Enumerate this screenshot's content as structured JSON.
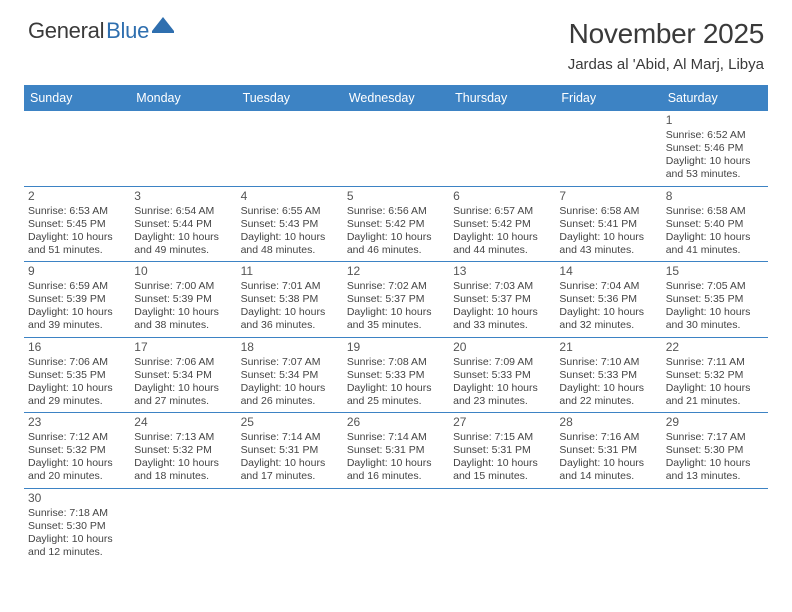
{
  "brand": {
    "text1": "General",
    "text2": "Blue",
    "logo_fill": "#2F6FAF"
  },
  "header": {
    "month_title": "November 2025",
    "location": "Jardas al 'Abid, Al Marj, Libya"
  },
  "styling": {
    "header_bg": "#3D83C4",
    "header_text": "#ffffff",
    "body_text": "#444444",
    "page_bg": "#ffffff",
    "grid_line": "#b8b8b8",
    "row_sep": "#3D83C4",
    "font_family": "Arial",
    "th_fontsize": 12.5,
    "td_fontsize": 10.5,
    "title_fontsize": 28,
    "location_fontsize": 15
  },
  "columns": [
    "Sunday",
    "Monday",
    "Tuesday",
    "Wednesday",
    "Thursday",
    "Friday",
    "Saturday"
  ],
  "weeks": [
    [
      null,
      null,
      null,
      null,
      null,
      null,
      {
        "d": "1",
        "sr": "6:52 AM",
        "ss": "5:46 PM",
        "dl1": "10 hours",
        "dl2": "and 53 minutes."
      }
    ],
    [
      {
        "d": "2",
        "sr": "6:53 AM",
        "ss": "5:45 PM",
        "dl1": "10 hours",
        "dl2": "and 51 minutes."
      },
      {
        "d": "3",
        "sr": "6:54 AM",
        "ss": "5:44 PM",
        "dl1": "10 hours",
        "dl2": "and 49 minutes."
      },
      {
        "d": "4",
        "sr": "6:55 AM",
        "ss": "5:43 PM",
        "dl1": "10 hours",
        "dl2": "and 48 minutes."
      },
      {
        "d": "5",
        "sr": "6:56 AM",
        "ss": "5:42 PM",
        "dl1": "10 hours",
        "dl2": "and 46 minutes."
      },
      {
        "d": "6",
        "sr": "6:57 AM",
        "ss": "5:42 PM",
        "dl1": "10 hours",
        "dl2": "and 44 minutes."
      },
      {
        "d": "7",
        "sr": "6:58 AM",
        "ss": "5:41 PM",
        "dl1": "10 hours",
        "dl2": "and 43 minutes."
      },
      {
        "d": "8",
        "sr": "6:58 AM",
        "ss": "5:40 PM",
        "dl1": "10 hours",
        "dl2": "and 41 minutes."
      }
    ],
    [
      {
        "d": "9",
        "sr": "6:59 AM",
        "ss": "5:39 PM",
        "dl1": "10 hours",
        "dl2": "and 39 minutes."
      },
      {
        "d": "10",
        "sr": "7:00 AM",
        "ss": "5:39 PM",
        "dl1": "10 hours",
        "dl2": "and 38 minutes."
      },
      {
        "d": "11",
        "sr": "7:01 AM",
        "ss": "5:38 PM",
        "dl1": "10 hours",
        "dl2": "and 36 minutes."
      },
      {
        "d": "12",
        "sr": "7:02 AM",
        "ss": "5:37 PM",
        "dl1": "10 hours",
        "dl2": "and 35 minutes."
      },
      {
        "d": "13",
        "sr": "7:03 AM",
        "ss": "5:37 PM",
        "dl1": "10 hours",
        "dl2": "and 33 minutes."
      },
      {
        "d": "14",
        "sr": "7:04 AM",
        "ss": "5:36 PM",
        "dl1": "10 hours",
        "dl2": "and 32 minutes."
      },
      {
        "d": "15",
        "sr": "7:05 AM",
        "ss": "5:35 PM",
        "dl1": "10 hours",
        "dl2": "and 30 minutes."
      }
    ],
    [
      {
        "d": "16",
        "sr": "7:06 AM",
        "ss": "5:35 PM",
        "dl1": "10 hours",
        "dl2": "and 29 minutes."
      },
      {
        "d": "17",
        "sr": "7:06 AM",
        "ss": "5:34 PM",
        "dl1": "10 hours",
        "dl2": "and 27 minutes."
      },
      {
        "d": "18",
        "sr": "7:07 AM",
        "ss": "5:34 PM",
        "dl1": "10 hours",
        "dl2": "and 26 minutes."
      },
      {
        "d": "19",
        "sr": "7:08 AM",
        "ss": "5:33 PM",
        "dl1": "10 hours",
        "dl2": "and 25 minutes."
      },
      {
        "d": "20",
        "sr": "7:09 AM",
        "ss": "5:33 PM",
        "dl1": "10 hours",
        "dl2": "and 23 minutes."
      },
      {
        "d": "21",
        "sr": "7:10 AM",
        "ss": "5:33 PM",
        "dl1": "10 hours",
        "dl2": "and 22 minutes."
      },
      {
        "d": "22",
        "sr": "7:11 AM",
        "ss": "5:32 PM",
        "dl1": "10 hours",
        "dl2": "and 21 minutes."
      }
    ],
    [
      {
        "d": "23",
        "sr": "7:12 AM",
        "ss": "5:32 PM",
        "dl1": "10 hours",
        "dl2": "and 20 minutes."
      },
      {
        "d": "24",
        "sr": "7:13 AM",
        "ss": "5:32 PM",
        "dl1": "10 hours",
        "dl2": "and 18 minutes."
      },
      {
        "d": "25",
        "sr": "7:14 AM",
        "ss": "5:31 PM",
        "dl1": "10 hours",
        "dl2": "and 17 minutes."
      },
      {
        "d": "26",
        "sr": "7:14 AM",
        "ss": "5:31 PM",
        "dl1": "10 hours",
        "dl2": "and 16 minutes."
      },
      {
        "d": "27",
        "sr": "7:15 AM",
        "ss": "5:31 PM",
        "dl1": "10 hours",
        "dl2": "and 15 minutes."
      },
      {
        "d": "28",
        "sr": "7:16 AM",
        "ss": "5:31 PM",
        "dl1": "10 hours",
        "dl2": "and 14 minutes."
      },
      {
        "d": "29",
        "sr": "7:17 AM",
        "ss": "5:30 PM",
        "dl1": "10 hours",
        "dl2": "and 13 minutes."
      }
    ],
    [
      {
        "d": "30",
        "sr": "7:18 AM",
        "ss": "5:30 PM",
        "dl1": "10 hours",
        "dl2": "and 12 minutes."
      },
      null,
      null,
      null,
      null,
      null,
      null
    ]
  ],
  "labels": {
    "sunrise": "Sunrise:",
    "sunset": "Sunset:",
    "daylight": "Daylight:"
  }
}
